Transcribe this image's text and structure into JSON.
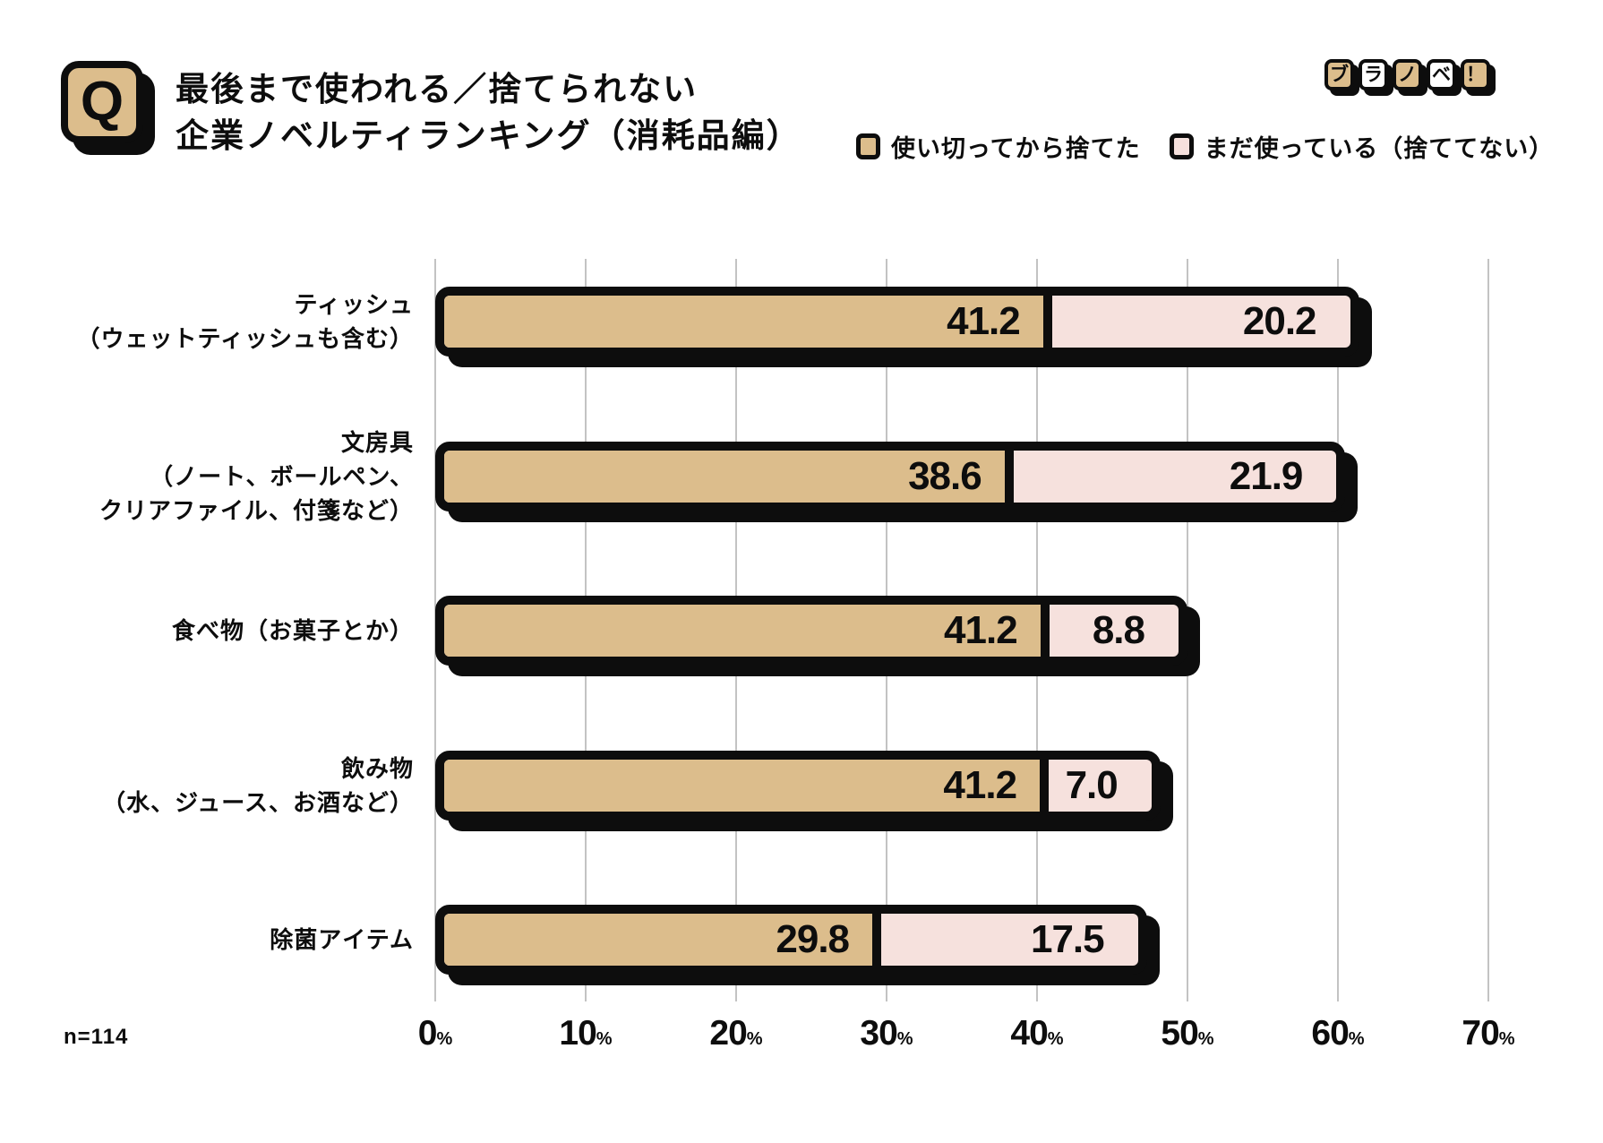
{
  "header": {
    "q_label": "Q",
    "title_line1": "最後まで使われる／捨てられない",
    "title_line2": "企業ノベルティランキング（消耗品編）",
    "logo_tiles": [
      {
        "char": "ブ",
        "fill": "tan"
      },
      {
        "char": "ラ",
        "fill": "white"
      },
      {
        "char": "ノ",
        "fill": "tan"
      },
      {
        "char": "ベ",
        "fill": "white"
      },
      {
        "char": "！",
        "fill": "tan"
      }
    ]
  },
  "legend": [
    {
      "label": "使い切ってから捨てた",
      "color": "#dcbd8c"
    },
    {
      "label": "まだ使っている（捨ててない）",
      "color": "#f6e1dd"
    }
  ],
  "colors": {
    "tan": "#dcbd8c",
    "pink": "#f6e1dd",
    "outline_black": "#0d0d0d",
    "gridline_gray": "#c3c3c3",
    "background": "#ffffff"
  },
  "footnote": "n=114",
  "chart_data": {
    "type": "bar",
    "orientation": "horizontal",
    "stacked": true,
    "title": "最後まで使われる／捨てられない 企業ノベルティランキング（消耗品編）",
    "categories": [
      [
        "ティッシュ",
        "（ウェットティッシュも含む）"
      ],
      [
        "文房具",
        "（ノート、ボールペン、",
        "クリアファイル、付箋など）"
      ],
      [
        "食べ物（お菓子とか）"
      ],
      [
        "飲み物",
        "（水、ジュース、お酒など）"
      ],
      [
        "除菌アイテム"
      ]
    ],
    "series": [
      {
        "name": "使い切ってから捨てた",
        "color": "#dcbd8c",
        "values": [
          41.2,
          38.6,
          41.2,
          41.2,
          29.8
        ]
      },
      {
        "name": "まだ使っている（捨ててない）",
        "color": "#f6e1dd",
        "values": [
          20.2,
          21.9,
          8.8,
          7.0,
          17.5
        ]
      }
    ],
    "value_labels": [
      [
        "41.2",
        "20.2"
      ],
      [
        "38.6",
        "21.9"
      ],
      [
        "41.2",
        "8.8"
      ],
      [
        "41.2",
        "7.0"
      ],
      [
        "29.8",
        "17.5"
      ]
    ],
    "xlim": [
      0,
      70
    ],
    "xticks": [
      0,
      10,
      20,
      30,
      40,
      50,
      60,
      70
    ],
    "tick_suffix": "%",
    "grid": true,
    "legend_position": "top-right",
    "sample_size": "n=114"
  }
}
